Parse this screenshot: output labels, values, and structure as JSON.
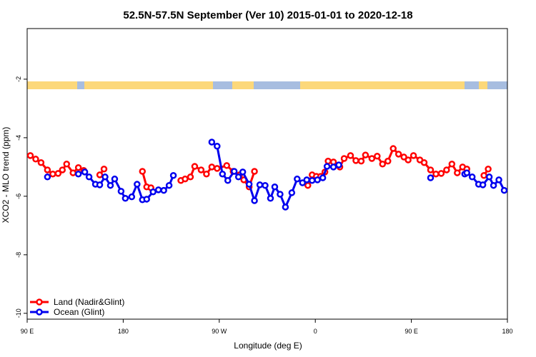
{
  "chart_data": {
    "type": "line",
    "title": "52.5N-57.5N September (Ver 10)   2015-01-01 to 2020-12-18",
    "x_label": "Longitude (deg E)",
    "y_label": "XCO2 - MLO trend (ppm)",
    "xlim": [
      90,
      540
    ],
    "ylim": [
      -10.2,
      -0.27
    ],
    "xticks": [
      {
        "value": 90,
        "label": "90 E"
      },
      180,
      {
        "value": 270,
        "label": "90 W"
      },
      {
        "value": 360,
        "label": "0"
      },
      {
        "value": 450,
        "label": "90 E"
      },
      {
        "value": 540,
        "label": "180"
      }
    ],
    "yticks": [
      -2,
      -4,
      -6,
      -8,
      -10
    ],
    "legend": "bottom-left",
    "series": [
      {
        "name": "Land (Nadir&Glint)",
        "color": "#ff0000",
        "x": [
          93,
          98,
          103,
          109,
          114,
          119,
          123,
          127,
          133,
          138,
          143,
          null,
          158,
          162,
          null,
          198,
          202,
          206,
          null,
          234,
          238,
          243,
          247,
          253,
          258,
          263,
          268,
          277,
          283,
          289,
          293,
          298,
          303,
          null,
          353,
          357,
          361,
          365,
          369,
          372,
          377,
          383,
          387,
          393,
          398,
          403,
          407,
          413,
          418,
          423,
          428,
          433,
          438,
          443,
          447,
          452,
          458,
          462,
          468,
          473,
          478,
          483,
          488,
          493,
          498,
          502,
          null,
          518,
          522
        ],
        "values": [
          -4.61,
          -4.73,
          -4.85,
          -5.1,
          -5.24,
          -5.22,
          -5.1,
          -4.9,
          -5.2,
          -5.02,
          -5.12,
          null,
          -5.27,
          -5.07,
          null,
          -5.15,
          -5.68,
          -5.71,
          null,
          -5.46,
          -5.41,
          -5.34,
          -4.98,
          -5.1,
          -5.24,
          -5.0,
          -5.05,
          -4.95,
          -5.15,
          -5.27,
          -5.44,
          -5.68,
          -5.15,
          null,
          -5.63,
          -5.27,
          -5.32,
          -5.32,
          -5.17,
          -4.8,
          -4.83,
          -5.0,
          -4.71,
          -4.61,
          -4.78,
          -4.8,
          -4.59,
          -4.71,
          -4.63,
          -4.9,
          -4.8,
          -4.37,
          -4.56,
          -4.66,
          -4.76,
          -4.61,
          -4.76,
          -4.85,
          -5.1,
          -5.24,
          -5.22,
          -5.1,
          -4.9,
          -5.2,
          -5.0,
          -5.07,
          null,
          -5.29,
          -5.07
        ]
      },
      {
        "name": "Ocean (Glint)",
        "color": "#0000ee",
        "x": [
          109,
          null,
          138,
          144,
          148,
          154,
          158,
          163,
          168,
          172,
          178,
          182,
          188,
          193,
          198,
          202,
          208,
          213,
          218,
          223,
          227,
          null,
          263,
          268,
          273,
          278,
          284,
          288,
          292,
          298,
          303,
          308,
          313,
          318,
          322,
          327,
          332,
          338,
          343,
          348,
          352,
          357,
          362,
          367,
          371,
          377,
          382,
          null,
          468,
          null,
          500,
          502,
          507,
          513,
          517,
          523,
          527,
          532,
          537
        ],
        "values": [
          -5.34,
          null,
          -5.24,
          -5.17,
          -5.34,
          -5.59,
          -5.61,
          -5.34,
          -5.63,
          -5.41,
          -5.83,
          -6.07,
          -6.02,
          -5.59,
          -6.12,
          -6.1,
          -5.85,
          -5.78,
          -5.8,
          -5.63,
          -5.29,
          null,
          -4.15,
          -4.29,
          -5.24,
          -5.46,
          -5.15,
          -5.34,
          -5.17,
          -5.59,
          -6.15,
          -5.61,
          -5.63,
          -6.07,
          -5.68,
          -5.93,
          -6.37,
          -5.88,
          -5.41,
          -5.54,
          -5.44,
          -5.46,
          -5.44,
          -5.37,
          -4.98,
          -5.0,
          -4.93,
          null,
          -5.37,
          null,
          -5.24,
          -5.2,
          -5.34,
          -5.59,
          -5.61,
          -5.34,
          -5.63,
          -5.44,
          -5.8
        ]
      }
    ]
  }
}
